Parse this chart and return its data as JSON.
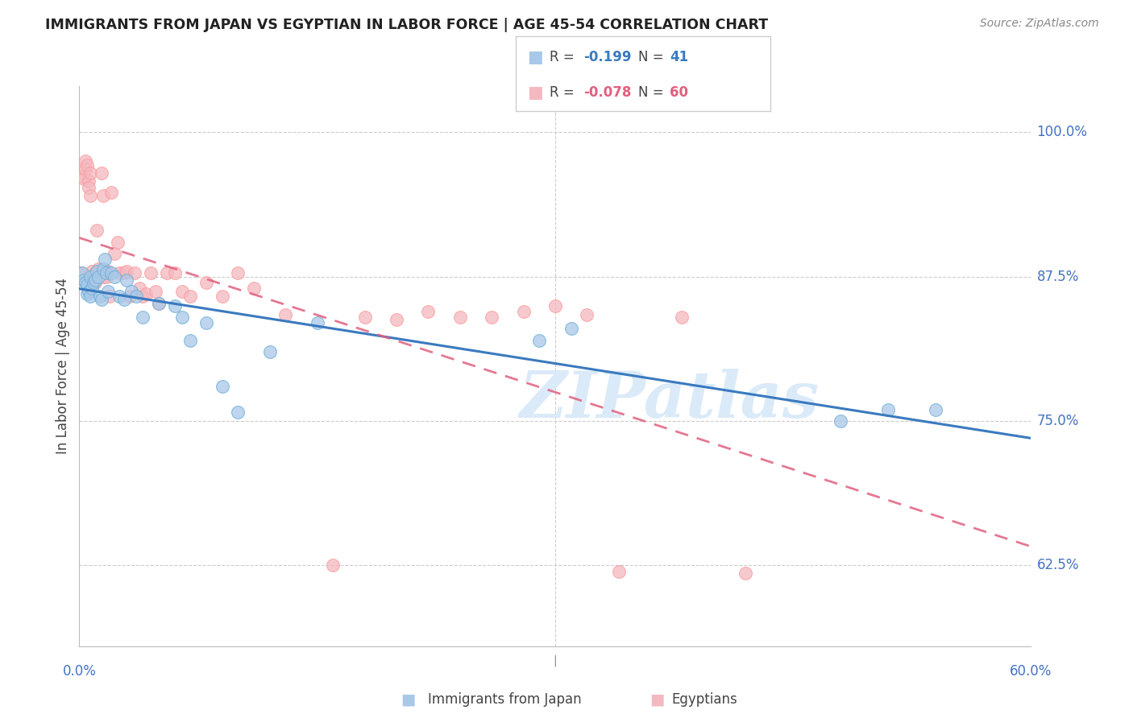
{
  "title": "IMMIGRANTS FROM JAPAN VS EGYPTIAN IN LABOR FORCE | AGE 45-54 CORRELATION CHART",
  "source": "Source: ZipAtlas.com",
  "ylabel": "In Labor Force | Age 45-54",
  "xlim": [
    0.0,
    0.6
  ],
  "ylim": [
    0.555,
    1.04
  ],
  "yticks": [
    0.625,
    0.75,
    0.875,
    1.0
  ],
  "ytick_labels": [
    "62.5%",
    "75.0%",
    "87.5%",
    "100.0%"
  ],
  "xticks": [
    0.0,
    0.1,
    0.2,
    0.3,
    0.4,
    0.5,
    0.6
  ],
  "xtick_labels": [
    "0.0%",
    "",
    "",
    "",
    "",
    "",
    "60.0%"
  ],
  "japan_R": -0.199,
  "japan_N": 41,
  "egypt_R": -0.078,
  "egypt_N": 60,
  "japan_color": "#a8c8e8",
  "egypt_color": "#f4b8c0",
  "japan_edge_color": "#6baed6",
  "egypt_edge_color": "#fb9a99",
  "japan_line_color": "#3a7abf",
  "egypt_line_color": "#e06080",
  "watermark": "ZIPatlas",
  "japan_x": [
    0.002,
    0.003,
    0.004,
    0.005,
    0.005,
    0.006,
    0.007,
    0.007,
    0.008,
    0.009,
    0.01,
    0.011,
    0.012,
    0.013,
    0.014,
    0.015,
    0.016,
    0.017,
    0.018,
    0.02,
    0.022,
    0.025,
    0.028,
    0.03,
    0.033,
    0.036,
    0.04,
    0.05,
    0.06,
    0.065,
    0.07,
    0.08,
    0.09,
    0.1,
    0.12,
    0.15,
    0.29,
    0.31,
    0.48,
    0.51,
    0.54
  ],
  "japan_y": [
    0.878,
    0.872,
    0.87,
    0.868,
    0.86,
    0.862,
    0.875,
    0.858,
    0.865,
    0.87,
    0.872,
    0.88,
    0.875,
    0.858,
    0.855,
    0.882,
    0.89,
    0.878,
    0.862,
    0.878,
    0.875,
    0.858,
    0.855,
    0.872,
    0.862,
    0.858,
    0.84,
    0.852,
    0.85,
    0.84,
    0.82,
    0.835,
    0.78,
    0.758,
    0.81,
    0.835,
    0.82,
    0.83,
    0.75,
    0.76,
    0.76
  ],
  "egypt_x": [
    0.001,
    0.002,
    0.003,
    0.004,
    0.004,
    0.005,
    0.006,
    0.006,
    0.007,
    0.007,
    0.008,
    0.008,
    0.009,
    0.01,
    0.01,
    0.011,
    0.012,
    0.013,
    0.014,
    0.015,
    0.015,
    0.016,
    0.017,
    0.018,
    0.019,
    0.02,
    0.022,
    0.024,
    0.025,
    0.028,
    0.03,
    0.032,
    0.035,
    0.038,
    0.04,
    0.042,
    0.045,
    0.048,
    0.05,
    0.055,
    0.06,
    0.065,
    0.07,
    0.08,
    0.09,
    0.1,
    0.11,
    0.13,
    0.16,
    0.18,
    0.2,
    0.22,
    0.24,
    0.26,
    0.28,
    0.3,
    0.32,
    0.34,
    0.38,
    0.42
  ],
  "egypt_y": [
    0.878,
    0.962,
    0.96,
    0.975,
    0.968,
    0.972,
    0.958,
    0.952,
    0.965,
    0.945,
    0.88,
    0.875,
    0.875,
    0.878,
    0.87,
    0.915,
    0.882,
    0.878,
    0.965,
    0.875,
    0.945,
    0.878,
    0.875,
    0.88,
    0.858,
    0.948,
    0.895,
    0.905,
    0.878,
    0.878,
    0.88,
    0.858,
    0.878,
    0.865,
    0.858,
    0.86,
    0.878,
    0.862,
    0.852,
    0.878,
    0.878,
    0.862,
    0.858,
    0.87,
    0.858,
    0.878,
    0.865,
    0.842,
    0.625,
    0.84,
    0.838,
    0.845,
    0.84,
    0.84,
    0.845,
    0.85,
    0.842,
    0.62,
    0.84,
    0.618
  ]
}
